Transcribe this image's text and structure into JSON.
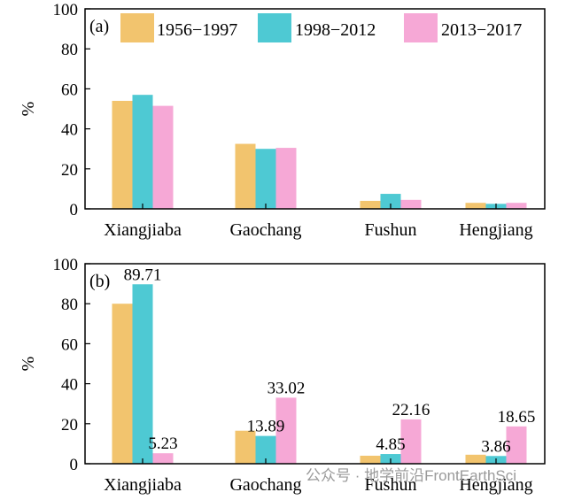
{
  "chart_data": [
    {
      "type": "bar",
      "panel_label": "(a)",
      "ylabel": "%",
      "ylim": [
        0,
        100
      ],
      "yticks": [
        0,
        20,
        40,
        60,
        80,
        100
      ],
      "categories": [
        "Xiangjiaba",
        "Gaochang",
        "Fushun",
        "Hengjiang"
      ],
      "series": [
        {
          "name": "1956−1997",
          "color": "#F2C46E",
          "values": [
            54,
            32.5,
            4,
            3
          ]
        },
        {
          "name": "1998−2012",
          "color": "#4EC9D3",
          "values": [
            57,
            30,
            7.5,
            2.5
          ]
        },
        {
          "name": "2013−2017",
          "color": "#F6A8D6",
          "values": [
            51.5,
            30.5,
            4.5,
            3
          ]
        }
      ],
      "legend_position": "top"
    },
    {
      "type": "bar",
      "panel_label": "(b)",
      "ylabel": "%",
      "ylim": [
        0,
        100
      ],
      "yticks": [
        0,
        20,
        40,
        60,
        80,
        100
      ],
      "categories": [
        "Xiangjiaba",
        "Gaochang",
        "Fushun",
        "Hengjiang"
      ],
      "series": [
        {
          "name": "1956−1997",
          "color": "#F2C46E",
          "values": [
            80,
            16.5,
            4,
            4.5
          ]
        },
        {
          "name": "1998−2012",
          "color": "#4EC9D3",
          "values": [
            89.71,
            13.89,
            4.85,
            3.86
          ]
        },
        {
          "name": "2013−2017",
          "color": "#F6A8D6",
          "values": [
            5.23,
            33.02,
            22.16,
            18.65
          ]
        }
      ],
      "data_labels": [
        {
          "series": 1,
          "category": 0,
          "text": "89.71"
        },
        {
          "series": 2,
          "category": 0,
          "text": "5.23"
        },
        {
          "series": 1,
          "category": 1,
          "text": "13.89"
        },
        {
          "series": 2,
          "category": 1,
          "text": "33.02"
        },
        {
          "series": 1,
          "category": 2,
          "text": "4.85"
        },
        {
          "series": 2,
          "category": 2,
          "text": "22.16"
        },
        {
          "series": 1,
          "category": 3,
          "text": "3.86"
        },
        {
          "series": 2,
          "category": 3,
          "text": "18.65"
        }
      ]
    }
  ],
  "watermark": {
    "text": "公众号 · 地学前沿FrontEarthSci"
  }
}
